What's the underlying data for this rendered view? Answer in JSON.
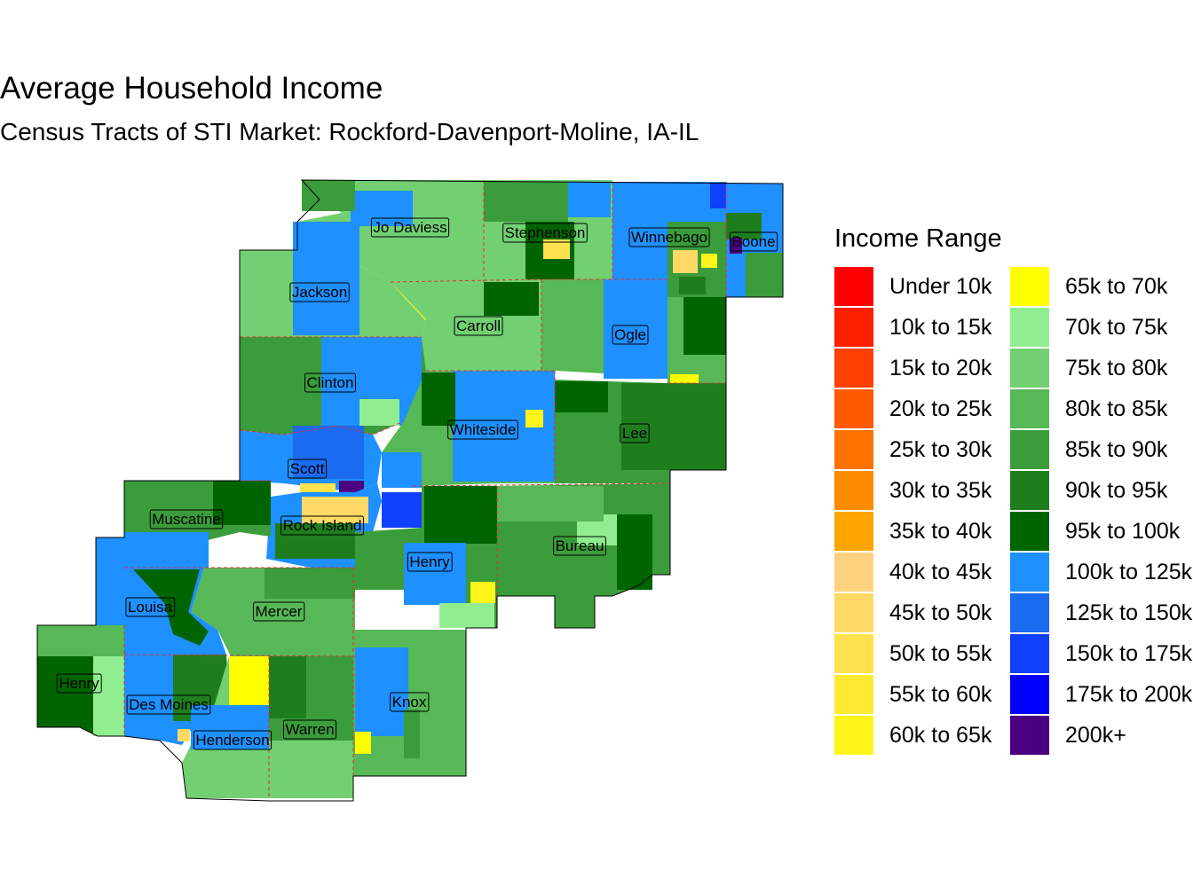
{
  "title": "Average Household Income",
  "subtitle": "Census Tracts of STI Market: Rockford-Davenport-Moline, IA-IL",
  "legend": {
    "title": "Income Range",
    "items": [
      {
        "label": "Under 10k",
        "color": "#FF0000"
      },
      {
        "label": "10k to 15k",
        "color": "#FF2000"
      },
      {
        "label": "15k to 20k",
        "color": "#FF4000"
      },
      {
        "label": "20k to 25k",
        "color": "#FF5A00"
      },
      {
        "label": "25k to 30k",
        "color": "#FF7200"
      },
      {
        "label": "30k to 35k",
        "color": "#FF8C00"
      },
      {
        "label": "35k to 40k",
        "color": "#FFA500"
      },
      {
        "label": "40k to 45k",
        "color": "#FFD27F"
      },
      {
        "label": "45k to 50k",
        "color": "#FFD966"
      },
      {
        "label": "50k to 55k",
        "color": "#FFE24D"
      },
      {
        "label": "55k to 60k",
        "color": "#FFEA33"
      },
      {
        "label": "60k to 65k",
        "color": "#FFF51A"
      },
      {
        "label": "65k to 70k",
        "color": "#FFFF00"
      },
      {
        "label": "70k to 75k",
        "color": "#90EE90"
      },
      {
        "label": "75k to 80k",
        "color": "#72D072"
      },
      {
        "label": "80k to 85k",
        "color": "#56B856"
      },
      {
        "label": "85k to 90k",
        "color": "#3A9C3A"
      },
      {
        "label": "90k to 95k",
        "color": "#1E7E1E"
      },
      {
        "label": "95k to 100k",
        "color": "#006400"
      },
      {
        "label": "100k to 125k",
        "color": "#1E90FF"
      },
      {
        "label": "125k to 150k",
        "color": "#1A6BF0"
      },
      {
        "label": "150k to 175k",
        "color": "#1040FF"
      },
      {
        "label": "175k to 200k",
        "color": "#0000FF"
      },
      {
        "label": "200k+",
        "color": "#4B0082"
      }
    ]
  },
  "counties": [
    {
      "name": "Jo Daviess"
    },
    {
      "name": "Stephenson"
    },
    {
      "name": "Winnebago"
    },
    {
      "name": "Boone"
    },
    {
      "name": "Jackson"
    },
    {
      "name": "Carroll"
    },
    {
      "name": "Ogle"
    },
    {
      "name": "Clinton"
    },
    {
      "name": "Whiteside"
    },
    {
      "name": "Lee"
    },
    {
      "name": "Scott"
    },
    {
      "name": "Muscatine"
    },
    {
      "name": "Rock Island"
    },
    {
      "name": "Bureau"
    },
    {
      "name": "Henry"
    },
    {
      "name": "Louisa"
    },
    {
      "name": "Mercer"
    },
    {
      "name": "Henry"
    },
    {
      "name": "Des Moines"
    },
    {
      "name": "Knox"
    },
    {
      "name": "Warren"
    },
    {
      "name": "Henderson"
    }
  ]
}
